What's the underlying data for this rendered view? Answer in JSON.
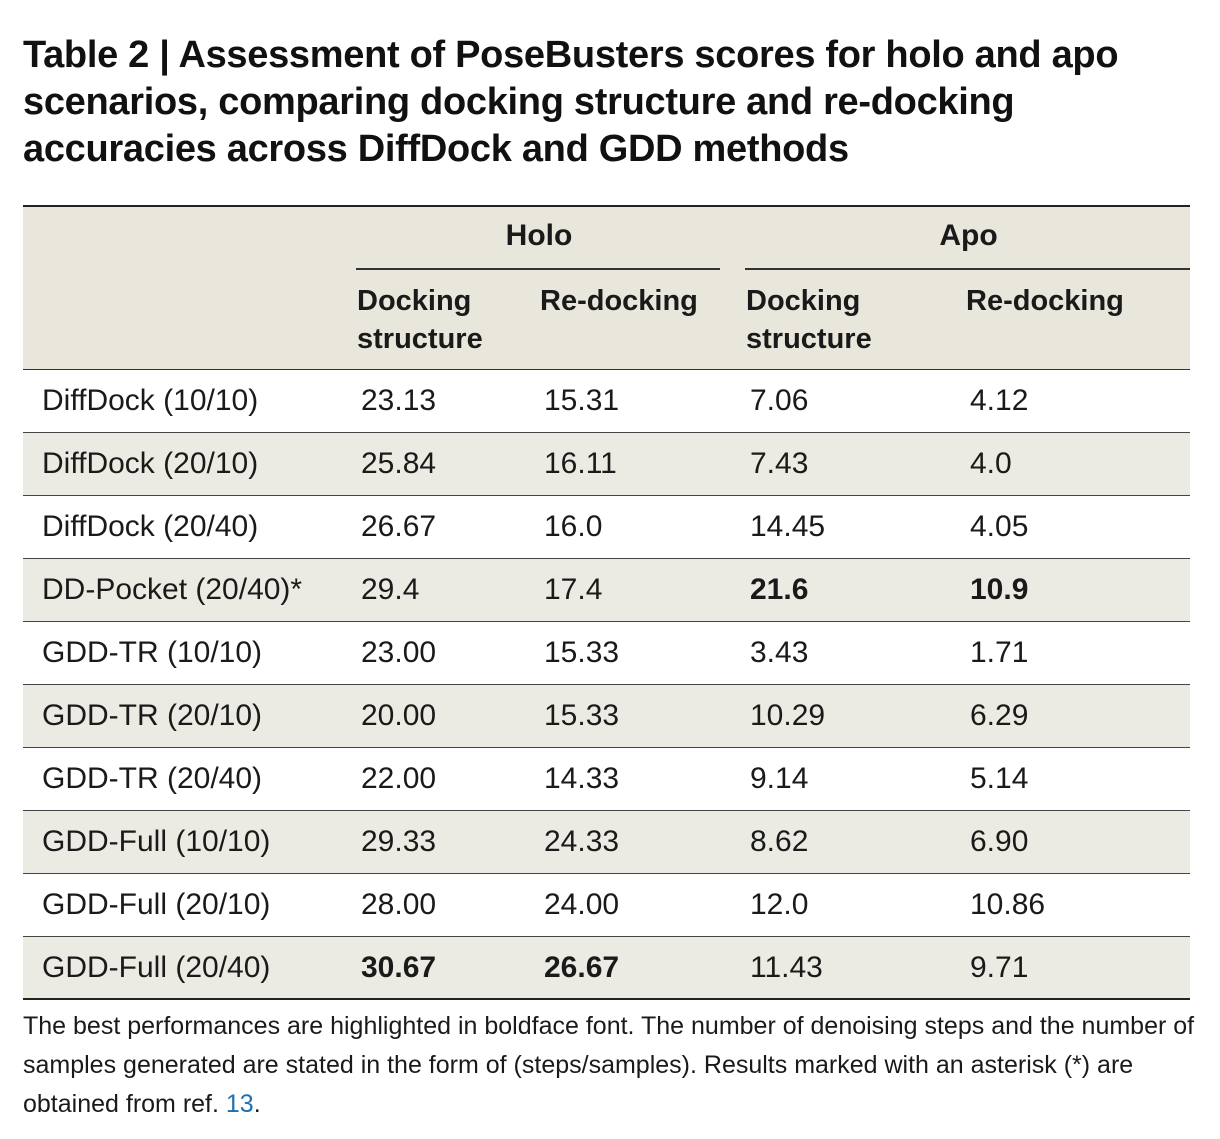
{
  "title": "Table 2 | Assessment of PoseBusters scores for holo and apo scenarios, comparing docking structure and re-docking accuracies across DiffDock and GDD methods",
  "header": {
    "groups": [
      "Holo",
      "Apo"
    ],
    "columns": [
      [
        "Docking",
        "structure"
      ],
      [
        "Re-docking"
      ],
      [
        "Docking",
        "structure"
      ],
      [
        "Re-docking"
      ]
    ]
  },
  "rows": [
    {
      "method": "DiffDock (10/10)",
      "values": [
        "23.13",
        "15.31",
        "7.06",
        "4.12"
      ],
      "bold": [
        false,
        false,
        false,
        false
      ]
    },
    {
      "method": "DiffDock (20/10)",
      "values": [
        "25.84",
        "16.11",
        "7.43",
        "4.0"
      ],
      "bold": [
        false,
        false,
        false,
        false
      ]
    },
    {
      "method": "DiffDock (20/40)",
      "values": [
        "26.67",
        "16.0",
        "14.45",
        "4.05"
      ],
      "bold": [
        false,
        false,
        false,
        false
      ]
    },
    {
      "method": "DD-Pocket (20/40)*",
      "values": [
        "29.4",
        "17.4",
        "21.6",
        "10.9"
      ],
      "bold": [
        false,
        false,
        true,
        true
      ]
    },
    {
      "method": "GDD-TR (10/10)",
      "values": [
        "23.00",
        "15.33",
        "3.43",
        "1.71"
      ],
      "bold": [
        false,
        false,
        false,
        false
      ]
    },
    {
      "method": "GDD-TR (20/10)",
      "values": [
        "20.00",
        "15.33",
        "10.29",
        "6.29"
      ],
      "bold": [
        false,
        false,
        false,
        false
      ]
    },
    {
      "method": "GDD-TR (20/40)",
      "values": [
        "22.00",
        "14.33",
        "9.14",
        "5.14"
      ],
      "bold": [
        false,
        false,
        false,
        false
      ]
    },
    {
      "method": "GDD-Full (10/10)",
      "values": [
        "29.33",
        "24.33",
        "8.62",
        "6.90"
      ],
      "bold": [
        false,
        false,
        false,
        false
      ]
    },
    {
      "method": "GDD-Full (20/10)",
      "values": [
        "28.00",
        "24.00",
        "12.0",
        "10.86"
      ],
      "bold": [
        false,
        false,
        false,
        false
      ]
    },
    {
      "method": "GDD-Full (20/40)",
      "values": [
        "30.67",
        "26.67",
        "11.43",
        "9.71"
      ],
      "bold": [
        true,
        true,
        false,
        false
      ]
    }
  ],
  "footnote": {
    "text": "The best performances are highlighted in boldface font. The number of denoising steps and the number of samples generated are stated in the form of (steps/samples). Results marked with an asterisk (*) are obtained from ref. ",
    "ref": "13",
    "end": "."
  },
  "colors": {
    "header_bg": "#e9e7dc",
    "shade_bg": "#ecebe3",
    "ref_link": "#1f6fb2"
  }
}
